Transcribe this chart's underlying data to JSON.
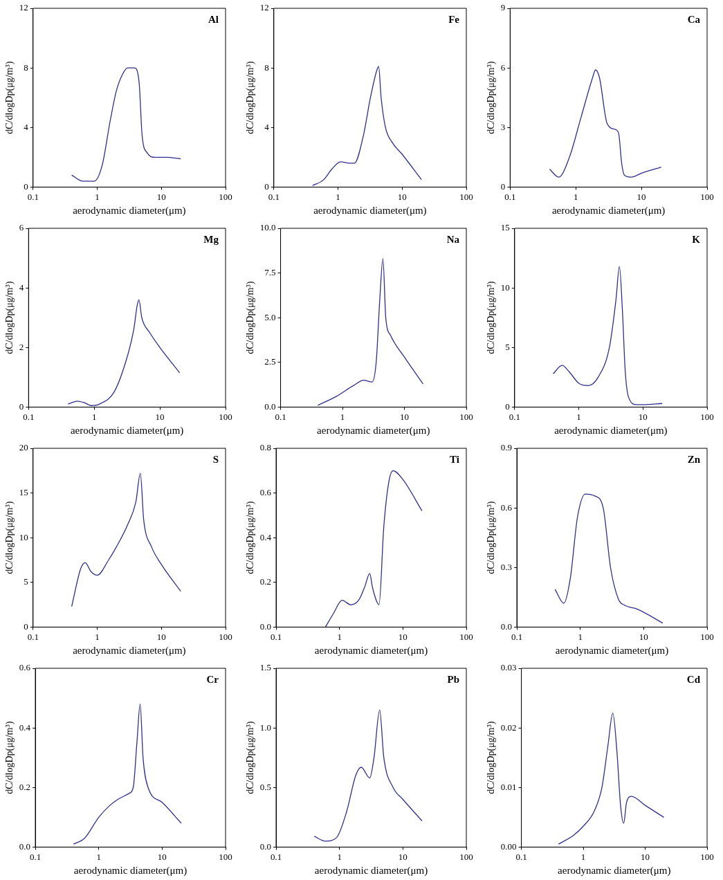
{
  "chart_data": [
    {
      "type": "line",
      "annotations": [
        "Al"
      ],
      "xlabel": "aerodynamic diameter(μm)",
      "ylabel": "dC/dlogDp(μg/m³)",
      "log": "x",
      "xlim": [
        0.1,
        100
      ],
      "xticks": [
        0.1,
        1,
        10,
        100
      ],
      "ylim": [
        0,
        12
      ],
      "yticks": [
        0,
        4,
        8,
        12
      ],
      "x": [
        0.4,
        0.6,
        0.9,
        1.2,
        1.6,
        2,
        2.5,
        3,
        3.8,
        4.5,
        5,
        6,
        8,
        12,
        20
      ],
      "series": [
        {
          "color": "#2e2e8f",
          "values": [
            0.8,
            0.4,
            0.4,
            1.5,
            4.5,
            6.5,
            7.6,
            8,
            8,
            7,
            3.5,
            2.3,
            2,
            2,
            1.9
          ]
        }
      ]
    },
    {
      "type": "line",
      "annotations": [
        "Fe"
      ],
      "xlabel": "aerodynamic diameter(μm)",
      "ylabel": "dC/dlogDp(μg/m³)",
      "log": "x",
      "xlim": [
        0.1,
        100
      ],
      "xticks": [
        0.1,
        1,
        10,
        100
      ],
      "ylim": [
        0,
        12
      ],
      "yticks": [
        0,
        4,
        8,
        12
      ],
      "x": [
        0.4,
        0.6,
        0.8,
        1.1,
        1.5,
        1.8,
        2.5,
        3.2,
        4,
        4.3,
        4.7,
        5.5,
        7,
        10,
        20
      ],
      "series": [
        {
          "color": "#2e2e8f",
          "values": [
            0.1,
            0.5,
            1.2,
            1.7,
            1.6,
            1.6,
            3.5,
            6,
            7.8,
            8.1,
            6,
            4,
            3,
            2.2,
            0.5
          ]
        }
      ]
    },
    {
      "type": "line",
      "annotations": [
        "Ca"
      ],
      "xlabel": "aerodynamic diameter(μm)",
      "ylabel": "dC/dlogDp(μg/m³)",
      "log": "x",
      "xlim": [
        0.1,
        100
      ],
      "xticks": [
        0.1,
        1,
        10,
        100
      ],
      "ylim": [
        0,
        9
      ],
      "yticks": [
        0,
        3,
        6,
        9
      ],
      "x": [
        0.4,
        0.55,
        0.8,
        1.2,
        1.8,
        2,
        2.3,
        3,
        4,
        4.5,
        5,
        5.5,
        7,
        10,
        20
      ],
      "series": [
        {
          "color": "#2e2e8f",
          "values": [
            0.9,
            0.5,
            1.5,
            3.5,
            5.5,
            5.9,
            5.5,
            3.2,
            2.9,
            2.7,
            1.2,
            0.6,
            0.5,
            0.7,
            1
          ]
        }
      ]
    },
    {
      "type": "line",
      "annotations": [
        "Mg"
      ],
      "xlabel": "aerodynamic diameter(μm)",
      "ylabel": "dC/dlogDp(μg/m³)",
      "log": "x",
      "xlim": [
        0.1,
        100
      ],
      "xticks": [
        0.1,
        1,
        10,
        100
      ],
      "ylim": [
        0,
        6
      ],
      "yticks": [
        0,
        2,
        4,
        6
      ],
      "x": [
        0.4,
        0.55,
        0.7,
        0.9,
        1.2,
        2,
        3,
        4,
        4.5,
        4.8,
        5.3,
        7,
        10,
        20
      ],
      "series": [
        {
          "color": "#2e2e8f",
          "values": [
            0.1,
            0.2,
            0.15,
            0.05,
            0.1,
            0.5,
            1.5,
            2.6,
            3.4,
            3.6,
            3,
            2.5,
            2,
            1.15
          ]
        }
      ]
    },
    {
      "type": "line",
      "annotations": [
        "Na"
      ],
      "xlabel": "aerodynamic diameter(μm)",
      "ylabel": "dC/dlogDp(μg/m³)",
      "log": "x",
      "xlim": [
        0.1,
        100
      ],
      "xticks": [
        0.1,
        1,
        10,
        100
      ],
      "ylim": [
        0,
        10
      ],
      "yticks": [
        {
          "value": 0,
          "label": "0.0"
        },
        {
          "value": 2.5,
          "label": "2.5"
        },
        {
          "value": 5,
          "label": "5.0"
        },
        {
          "value": 7.5,
          "label": "7.5"
        },
        {
          "value": 10,
          "label": "10.0"
        }
      ],
      "x": [
        0.4,
        0.8,
        1.5,
        2.2,
        3,
        3.5,
        4,
        4.5,
        5,
        6,
        10,
        20
      ],
      "series": [
        {
          "color": "#2e2e8f",
          "values": [
            0.1,
            0.6,
            1.2,
            1.5,
            1.4,
            2.5,
            6,
            8.3,
            5,
            4,
            2.8,
            1.3
          ]
        }
      ]
    },
    {
      "type": "line",
      "annotations": [
        "K"
      ],
      "xlabel": "aerodynamic diameter(μm)",
      "ylabel": "dC/dlogDp(μg/m³)",
      "log": "x",
      "xlim": [
        0.1,
        100
      ],
      "xticks": [
        0.1,
        1,
        10,
        100
      ],
      "ylim": [
        0,
        15
      ],
      "yticks": [
        0,
        5,
        10,
        15
      ],
      "x": [
        0.4,
        0.55,
        0.7,
        1,
        1.4,
        2,
        3,
        3.8,
        4.3,
        4.8,
        5.3,
        6,
        8,
        10,
        20
      ],
      "series": [
        {
          "color": "#2e2e8f",
          "values": [
            2.8,
            3.5,
            3,
            2,
            1.8,
            2.5,
            5,
            9,
            11.8,
            8,
            3,
            0.8,
            0.2,
            0.2,
            0.3
          ]
        }
      ]
    },
    {
      "type": "line",
      "annotations": [
        "S"
      ],
      "xlabel": "aerodynamic diameter(μm)",
      "ylabel": "dC/dlogDp(μg/m³)",
      "log": "x",
      "xlim": [
        0.1,
        100
      ],
      "xticks": [
        0.1,
        1,
        10,
        100
      ],
      "ylim": [
        0,
        20
      ],
      "yticks": [
        0,
        5,
        10,
        15,
        20
      ],
      "x": [
        0.4,
        0.55,
        0.65,
        0.8,
        1,
        1.5,
        2,
        3,
        4,
        4.7,
        5.3,
        7,
        10,
        20
      ],
      "series": [
        {
          "color": "#2e2e8f",
          "values": [
            2.3,
            6.5,
            7.2,
            6.2,
            5.8,
            7.5,
            9,
            11.5,
            14,
            17.2,
            12,
            9,
            7,
            4
          ]
        }
      ]
    },
    {
      "type": "line",
      "annotations": [
        "Ti"
      ],
      "xlabel": "aerodynamic diameter(μm)",
      "ylabel": "dC/dlogDp(μg/m³)",
      "log": "x",
      "xlim": [
        0.1,
        100
      ],
      "xticks": [
        0.1,
        1,
        10,
        100
      ],
      "ylim": [
        0,
        0.8
      ],
      "yticks": [
        {
          "value": 0,
          "label": "0.0"
        },
        0.2,
        0.4,
        0.6,
        0.8
      ],
      "x": [
        0.6,
        0.8,
        1.1,
        1.5,
        2,
        2.5,
        3,
        3.3,
        3.8,
        4.2,
        5,
        6,
        7,
        10,
        20
      ],
      "series": [
        {
          "color": "#2e2e8f",
          "values": [
            0,
            0.06,
            0.12,
            0.1,
            0.12,
            0.18,
            0.24,
            0.18,
            0.12,
            0.1,
            0.45,
            0.65,
            0.7,
            0.66,
            0.52
          ]
        }
      ]
    },
    {
      "type": "line",
      "annotations": [
        "Zn"
      ],
      "xlabel": "aerodynamic diameter(μm)",
      "ylabel": "dC/dlogDp(μg/m³)",
      "log": "x",
      "xlim": [
        0.1,
        100
      ],
      "xticks": [
        0.1,
        1,
        10,
        100
      ],
      "ylim": [
        0,
        0.9
      ],
      "yticks": [
        {
          "value": 0,
          "label": "0.0"
        },
        0.3,
        0.6,
        0.9
      ],
      "x": [
        0.4,
        0.55,
        0.7,
        0.9,
        1.2,
        1.7,
        2.3,
        3,
        4,
        5,
        8,
        20
      ],
      "series": [
        {
          "color": "#2e2e8f",
          "values": [
            0.19,
            0.12,
            0.25,
            0.55,
            0.67,
            0.66,
            0.6,
            0.3,
            0.14,
            0.11,
            0.09,
            0.02
          ]
        }
      ]
    },
    {
      "type": "line",
      "annotations": [
        "Cr"
      ],
      "xlabel": "aerodynamic diameter(μm)",
      "ylabel": "dC/dlogDp(μg/m³)",
      "log": "x",
      "xlim": [
        0.1,
        100
      ],
      "xticks": [
        0.1,
        1,
        10,
        100
      ],
      "ylim": [
        0,
        0.6
      ],
      "yticks": [
        {
          "value": 0,
          "label": "0.0"
        },
        0.2,
        0.4,
        0.6
      ],
      "x": [
        0.4,
        0.6,
        1,
        1.5,
        2,
        3,
        3.5,
        4,
        4.5,
        5,
        6,
        10,
        20
      ],
      "series": [
        {
          "color": "#2e2e8f",
          "values": [
            0.01,
            0.03,
            0.1,
            0.14,
            0.16,
            0.18,
            0.2,
            0.35,
            0.48,
            0.3,
            0.2,
            0.15,
            0.08
          ]
        }
      ]
    },
    {
      "type": "line",
      "annotations": [
        "Pb"
      ],
      "xlabel": "aerodynamic diameter(μm)",
      "ylabel": "dC/dlogDp(μg/m³)",
      "log": "x",
      "xlim": [
        0.1,
        100
      ],
      "xticks": [
        0.1,
        1,
        10,
        100
      ],
      "ylim": [
        0,
        1.5
      ],
      "yticks": [
        {
          "value": 0,
          "label": "0.0"
        },
        0.5,
        {
          "value": 1,
          "label": "1.0"
        },
        1.5
      ],
      "x": [
        0.4,
        0.6,
        0.9,
        1.3,
        1.8,
        2.2,
        3,
        3.5,
        4.3,
        5,
        7,
        10,
        20
      ],
      "series": [
        {
          "color": "#2e2e8f",
          "values": [
            0.09,
            0.05,
            0.08,
            0.3,
            0.6,
            0.67,
            0.58,
            0.75,
            1.15,
            0.75,
            0.5,
            0.4,
            0.22
          ]
        }
      ]
    },
    {
      "type": "line",
      "annotations": [
        "Cd"
      ],
      "xlabel": "aerodynamic diameter(μm)",
      "ylabel": "dC/dlogDp(μg/m³)",
      "log": "x",
      "xlim": [
        0.1,
        100
      ],
      "xticks": [
        0.1,
        1,
        10,
        100
      ],
      "ylim": [
        0,
        0.03
      ],
      "yticks": [
        {
          "value": 0,
          "label": "0.00"
        },
        {
          "value": 0.01,
          "label": "0.01"
        },
        {
          "value": 0.02,
          "label": "0.02"
        },
        {
          "value": 0.03,
          "label": "0.03"
        }
      ],
      "x": [
        0.4,
        0.7,
        1,
        1.5,
        2,
        2.5,
        3,
        3.5,
        4,
        4.5,
        5,
        6,
        10,
        20
      ],
      "series": [
        {
          "color": "#2e2e8f",
          "values": [
            0.0005,
            0.002,
            0.0035,
            0.006,
            0.01,
            0.017,
            0.0225,
            0.016,
            0.007,
            0.004,
            0.0075,
            0.0085,
            0.007,
            0.005
          ]
        }
      ]
    }
  ]
}
